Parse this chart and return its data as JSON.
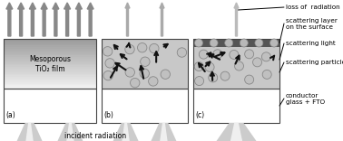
{
  "fig_width": 3.78,
  "fig_height": 1.56,
  "bg_color": "#ffffff",
  "annotations": [
    "loss of  radiation",
    "scattering layer\non the surface",
    "scattering light",
    "scattering particles",
    "conductor\nglass + FTO"
  ],
  "font_size_label": 5.5,
  "font_size_annot": 5.2,
  "font_size_text": 5.5,
  "arrow_gray": "#888888",
  "particle_fill": "#c0c0c0",
  "particle_edge": "#888888",
  "scatter_line_color": "#111111",
  "incident_text": "incident radiation",
  "film_gray": "#c8c8c8",
  "dark_gray": "#555555",
  "panel_a_film_top": "#aaaaaa",
  "panel_a_film_bot": "#f0f0f0"
}
